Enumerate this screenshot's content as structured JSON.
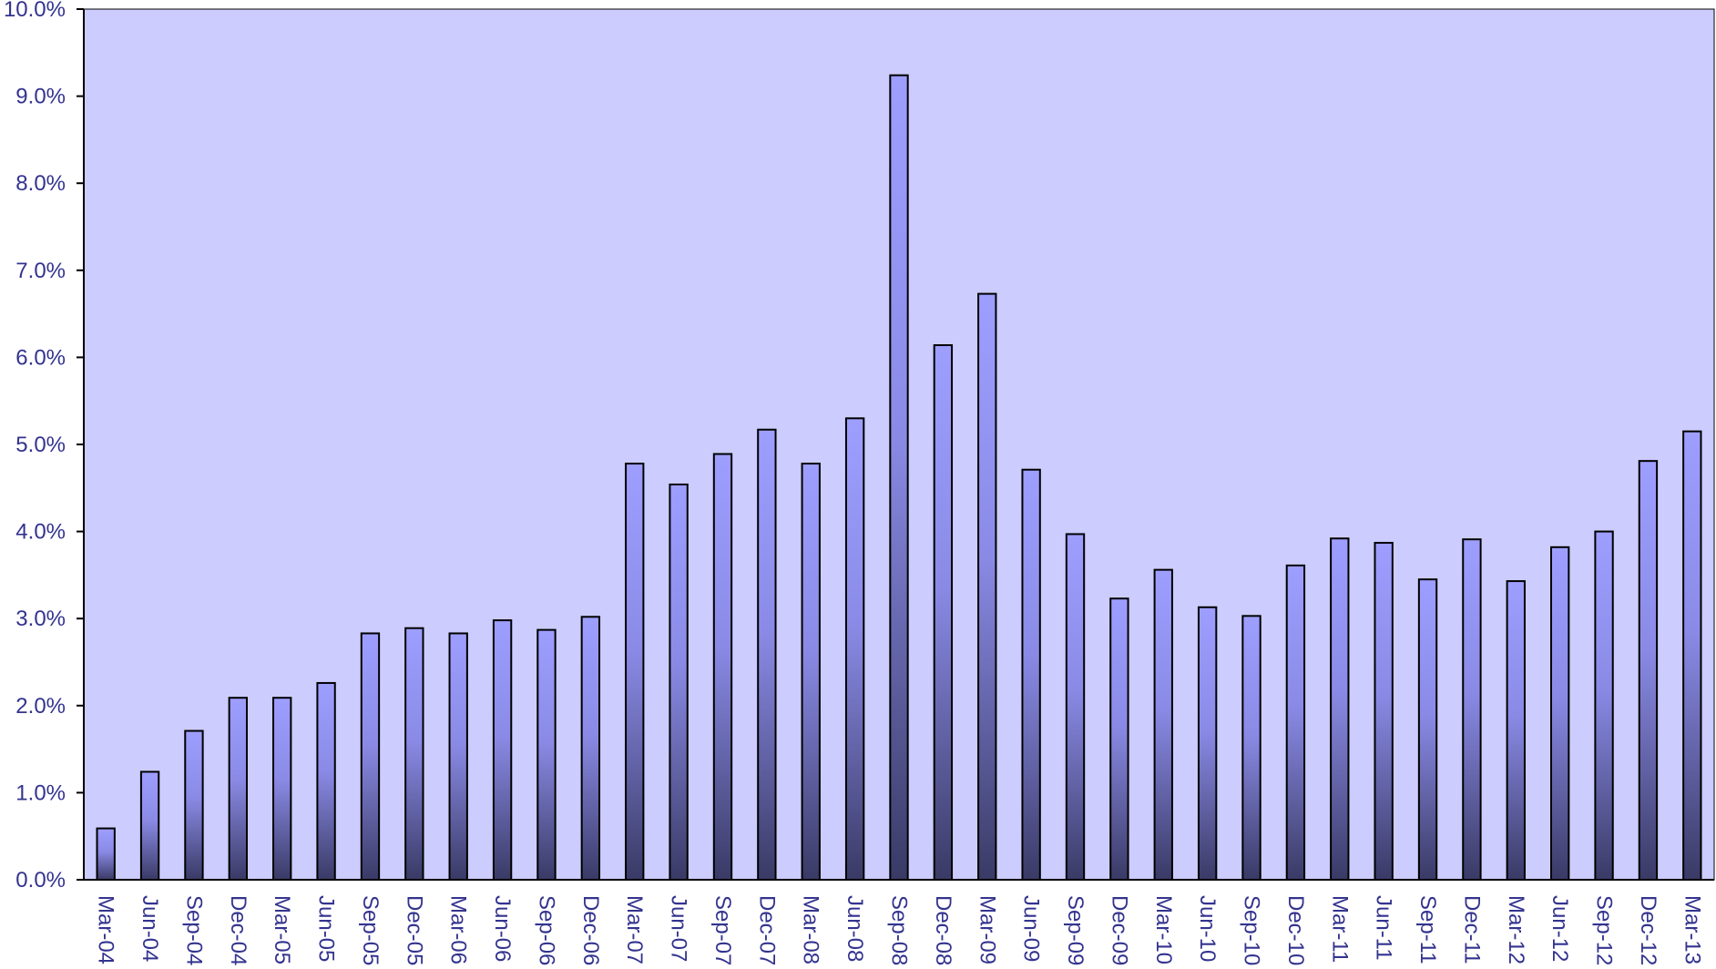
{
  "chart_data": {
    "type": "bar",
    "categories": [
      "Mar-04",
      "Jun-04",
      "Sep-04",
      "Dec-04",
      "Mar-05",
      "Jun-05",
      "Sep-05",
      "Dec-05",
      "Mar-06",
      "Jun-06",
      "Sep-06",
      "Dec-06",
      "Mar-07",
      "Jun-07",
      "Sep-07",
      "Dec-07",
      "Mar-08",
      "Jun-08",
      "Sep-08",
      "Dec-08",
      "Mar-09",
      "Jun-09",
      "Sep-09",
      "Dec-09",
      "Mar-10",
      "Jun-10",
      "Sep-10",
      "Dec-10",
      "Mar-11",
      "Jun-11",
      "Sep-11",
      "Dec-11",
      "Mar-12",
      "Jun-12",
      "Sep-12",
      "Dec-12",
      "Mar-13"
    ],
    "values": [
      0.59,
      1.24,
      1.71,
      2.09,
      2.09,
      2.26,
      2.83,
      2.89,
      2.83,
      2.98,
      2.87,
      3.02,
      4.78,
      4.54,
      4.89,
      5.17,
      4.78,
      5.3,
      9.24,
      6.14,
      6.73,
      4.71,
      3.97,
      3.23,
      3.56,
      3.13,
      3.03,
      3.61,
      3.92,
      3.87,
      3.45,
      3.91,
      3.43,
      3.82,
      4.0,
      4.81,
      5.15
    ],
    "y_ticks": [
      "0.0%",
      "1.0%",
      "2.0%",
      "3.0%",
      "4.0%",
      "5.0%",
      "6.0%",
      "7.0%",
      "8.0%",
      "9.0%",
      "10.0%"
    ],
    "ylim": [
      0,
      10
    ],
    "title": "",
    "xlabel": "",
    "ylabel": "",
    "grid": false,
    "legend": "none"
  },
  "colors": {
    "plot_background": "#ccccff",
    "bar_top": "#9e9eff",
    "bar_bottom": "#3a3a66",
    "bar_outline": "#000000",
    "axis_text": "#33338f",
    "axis_line": "#000000"
  }
}
